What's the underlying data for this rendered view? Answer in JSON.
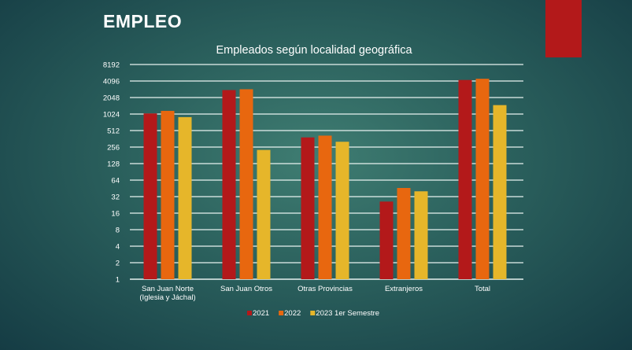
{
  "slide": {
    "title": "EMPLEO",
    "accent_color": "#b3191a"
  },
  "chart_data": {
    "type": "bar",
    "title": "Empleados según localidad geográfica",
    "xlabel": "",
    "ylabel": "",
    "yscale": "log2",
    "ylim": [
      1,
      8192
    ],
    "yticks": [
      1,
      2,
      4,
      8,
      16,
      32,
      64,
      128,
      256,
      512,
      1024,
      2048,
      4096,
      8192
    ],
    "grid": true,
    "legend": "bottom",
    "categories": [
      [
        "San Juan Norte",
        "(Iglesia y Jáchal)"
      ],
      [
        "San Juan Otros"
      ],
      [
        "Otras Provincias"
      ],
      [
        "Extranjeros"
      ],
      [
        "Total"
      ]
    ],
    "series": [
      {
        "name": "2021",
        "color": "#b3191a",
        "values": [
          1050,
          2800,
          384,
          26,
          4280
        ]
      },
      {
        "name": "2022",
        "color": "#e8670f",
        "values": [
          1170,
          2900,
          414,
          46,
          4500
        ]
      },
      {
        "name": "2023 1er Semestre",
        "color": "#e6b62a",
        "values": [
          900,
          227,
          320,
          40,
          1490
        ]
      }
    ]
  }
}
